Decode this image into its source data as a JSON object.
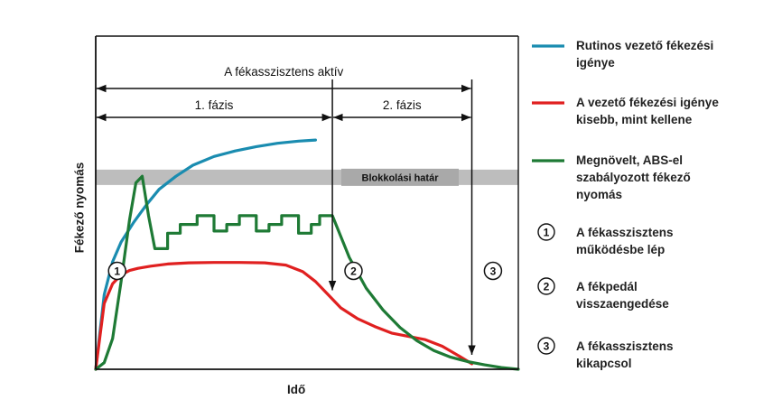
{
  "chart_data": {
    "type": "line",
    "title": "",
    "xlabel": "Idő",
    "ylabel": "Fékező nyomás",
    "xlim": [
      0,
      100
    ],
    "ylim": [
      0,
      100
    ],
    "grid": false,
    "legend_position": "right",
    "blocking_limit": {
      "label": "Blokkolási határ",
      "y_range": [
        84,
        91
      ]
    },
    "phase_markers": [
      {
        "label": "A fékasszisztens aktív",
        "x_start": 0,
        "x_end": 89
      },
      {
        "label": "1. fázis",
        "x_start": 0,
        "x_end": 56
      },
      {
        "label": "2. fázis",
        "x_start": 56,
        "x_end": 89
      }
    ],
    "event_lines": [
      {
        "id": "2",
        "x": 56,
        "y_top": 88
      },
      {
        "id": "3",
        "x": 89,
        "y_top": 88
      }
    ],
    "series": [
      {
        "name": "Rutinos vezető fékezési igénye",
        "color": "#1a8cb0",
        "x": [
          0,
          2,
          4,
          6,
          9,
          12,
          15,
          19,
          23,
          28,
          33,
          38,
          43,
          48,
          52
        ],
        "y": [
          0,
          34,
          49,
          58,
          67,
          75,
          82,
          88,
          93,
          97,
          99.5,
          101.5,
          103,
          104,
          104.5
        ]
      },
      {
        "name": "A vezető fékezési igénye kisebb, mint kellene",
        "color": "#e02020",
        "x": [
          0,
          1,
          2,
          4,
          6,
          8,
          10,
          13,
          17,
          22,
          28,
          34,
          40,
          45,
          49,
          52,
          55,
          58,
          62,
          66,
          70,
          74,
          78,
          82,
          86,
          89
        ],
        "y": [
          0,
          15,
          30,
          39,
          43,
          45,
          46,
          47,
          48,
          48.5,
          48.7,
          48.7,
          48.5,
          47.5,
          44.5,
          40,
          34,
          28,
          23,
          19.5,
          16.5,
          15,
          13.5,
          10.5,
          6,
          2.5
        ]
      },
      {
        "name": "Megnövelt, ABS-el szabályozott fékező nyomás",
        "color": "#1e7a35",
        "x": [
          0,
          2,
          4,
          6,
          8,
          9.5,
          11,
          12.5,
          14,
          16,
          17,
          17,
          20,
          20,
          24,
          24,
          28,
          28,
          31,
          31,
          34,
          34,
          38,
          38,
          41,
          41,
          44,
          44,
          48,
          48,
          51,
          51,
          53,
          53,
          56,
          60,
          64,
          68,
          72,
          76,
          80,
          84,
          88,
          92,
          96,
          100
        ],
        "y": [
          0,
          3,
          14,
          40,
          68,
          85,
          88,
          70,
          55,
          55,
          55,
          62,
          62,
          66,
          66,
          70,
          70,
          63,
          63,
          66,
          66,
          70,
          70,
          63,
          63,
          66,
          66,
          70,
          70,
          62,
          62,
          66,
          66,
          70,
          70,
          51,
          37,
          27,
          19,
          13,
          8.5,
          5.5,
          3.5,
          2,
          0.8,
          0
        ]
      }
    ],
    "legend": [
      {
        "type": "line",
        "color": "#1a8cb0",
        "lines": [
          "Rutinos vezető fékezési",
          "igénye"
        ]
      },
      {
        "type": "line",
        "color": "#e02020",
        "lines": [
          "A vezető fékezési igénye",
          "kisebb, mint kellene"
        ]
      },
      {
        "type": "line",
        "color": "#1e7a35",
        "lines": [
          "Megnövelt, ABS-el",
          "szabályozott fékező",
          "nyomás"
        ]
      },
      {
        "type": "marker",
        "id": "1",
        "lines": [
          "A fékasszisztens",
          "működésbe lép"
        ]
      },
      {
        "type": "marker",
        "id": "2",
        "lines": [
          "A fékpedál",
          "visszaengedése"
        ]
      },
      {
        "type": "marker",
        "id": "3",
        "lines": [
          "A fékasszisztens",
          "kikapcsol"
        ]
      }
    ],
    "annotations": [
      {
        "id": "1",
        "x": 4,
        "y": 48
      },
      {
        "id": "2",
        "x": 61,
        "y": 48
      },
      {
        "id": "3",
        "x": 94,
        "y": 48
      }
    ]
  }
}
